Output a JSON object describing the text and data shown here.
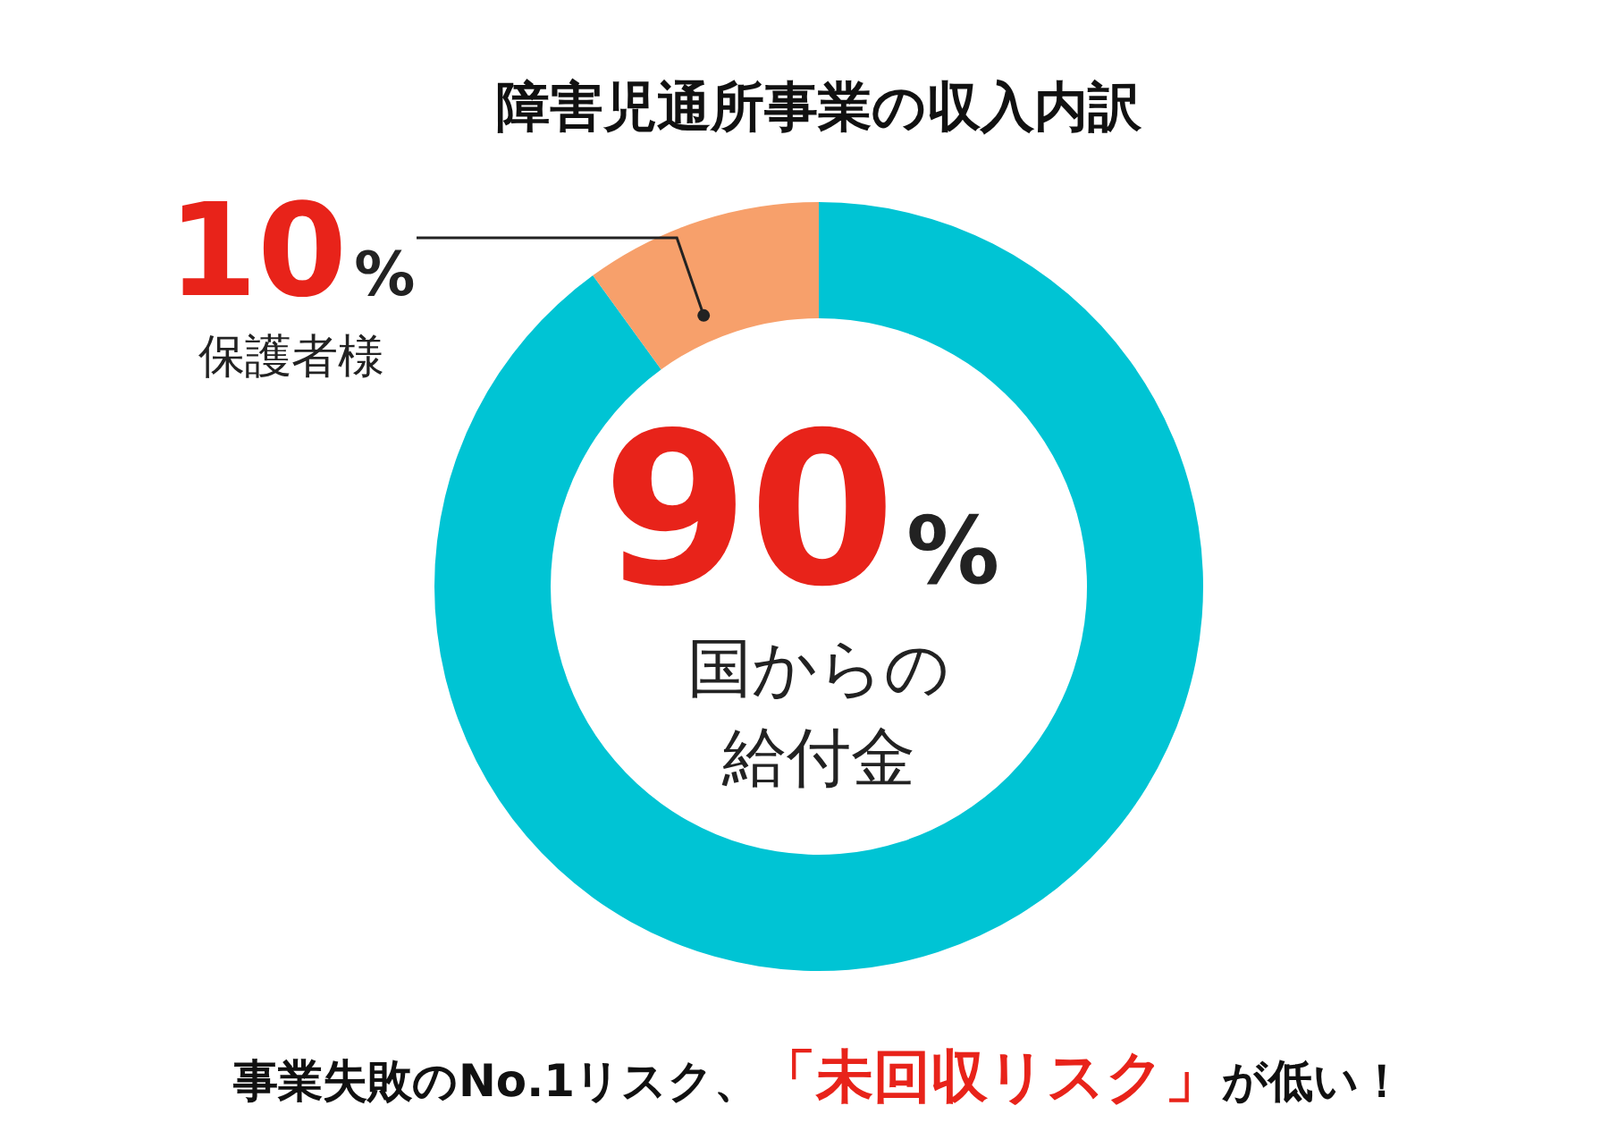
{
  "chart_data": {
    "type": "donut",
    "title": "障害児通所事業の収入内訳",
    "categories": [
      "国からの給付金",
      "保護者様"
    ],
    "values": [
      90,
      10
    ],
    "colors": [
      "#00c4d4",
      "#f7a06b"
    ],
    "value_labels": [
      "90%",
      "10%"
    ],
    "annotations": [
      "事業失敗のNo.1リスク、",
      "「未回収リスク」",
      "が低い！"
    ],
    "legend": false
  }
}
